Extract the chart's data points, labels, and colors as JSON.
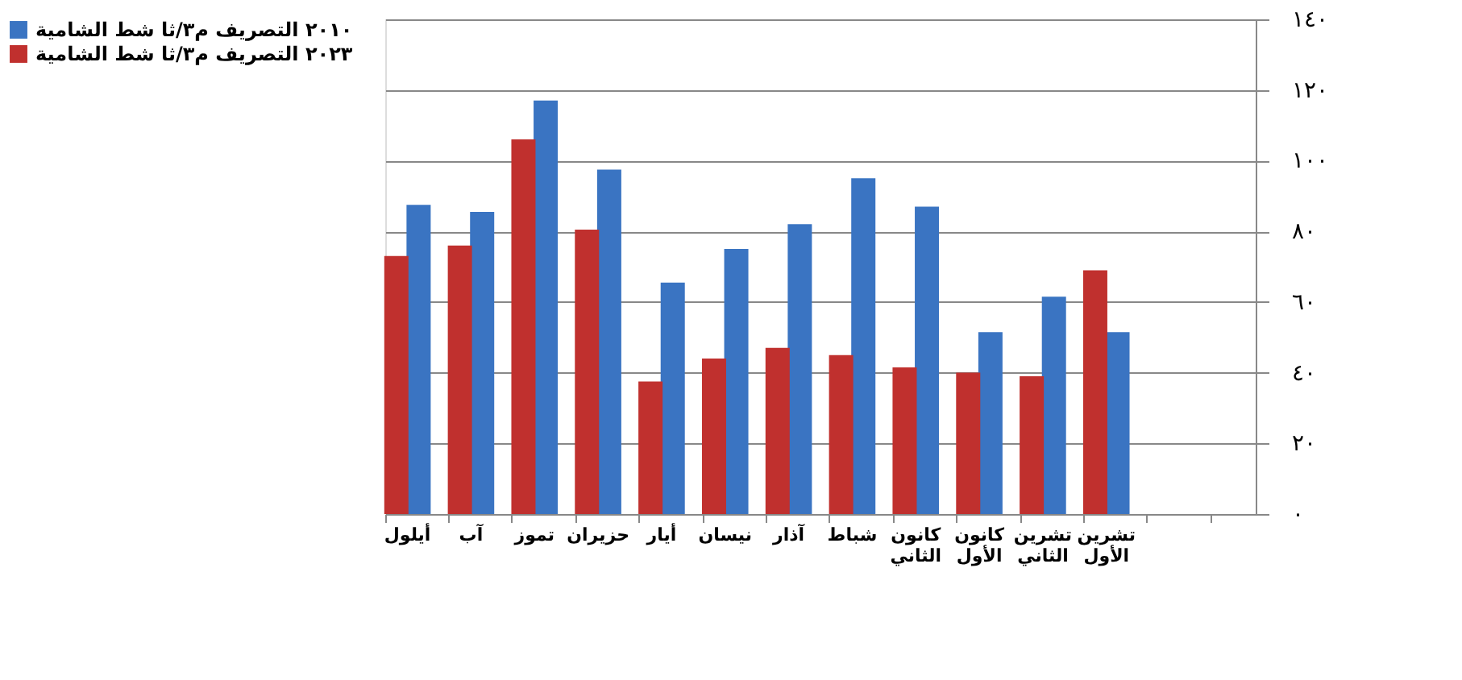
{
  "chart_data": {
    "type": "bar",
    "categories": [
      "أيلول",
      "آب",
      "تموز",
      "حزيران",
      "أيار",
      "نيسان",
      "آذار",
      "شباط",
      "كانون الثاني",
      "كانون الأول",
      "تشرين الثاني",
      "تشرين الأول",
      null,
      null
    ],
    "series": [
      {
        "name": "٢٠١٠ التصريف م٣/ثا شط الشامية",
        "color": "#3a74c2",
        "values": [
          87.5,
          85.5,
          117,
          97.5,
          65.5,
          75,
          82,
          95,
          87,
          51.5,
          61.5,
          51.5,
          null,
          null
        ]
      },
      {
        "name": "٢٠٢٣ التصريف م٣/ثا شط الشامية",
        "color": "#c0302e",
        "values": [
          73,
          76,
          106,
          80.5,
          37.5,
          44,
          47,
          45,
          41.5,
          40,
          39,
          69,
          null,
          null
        ]
      }
    ],
    "ylim": [
      0,
      140
    ],
    "yticks": [
      {
        "value": 0,
        "label": "٠"
      },
      {
        "value": 20,
        "label": "٢٠"
      },
      {
        "value": 40,
        "label": "٤٠"
      },
      {
        "value": 60,
        "label": "٦٠"
      },
      {
        "value": 80,
        "label": "٨٠"
      },
      {
        "value": 100,
        "label": "١٠٠"
      },
      {
        "value": 120,
        "label": "١٢٠"
      },
      {
        "value": 140,
        "label": "١٤٠"
      }
    ],
    "grid": "y",
    "legend": "top left"
  }
}
